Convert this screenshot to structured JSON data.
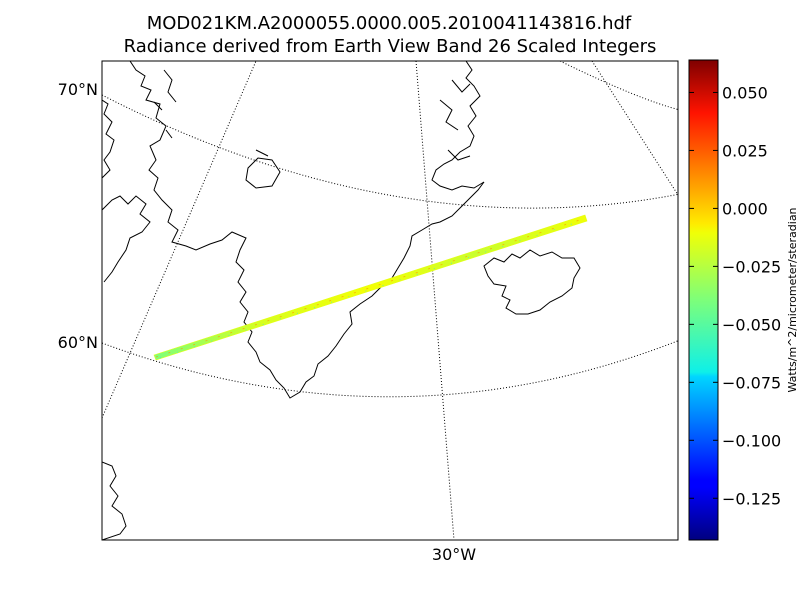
{
  "title": {
    "line1": "MOD021KM.A2000055.0000.005.2010041143816.hdf",
    "line2": "Radiance derived from Earth View Band 26 Scaled Integers"
  },
  "map": {
    "projection": "lambert-conformal",
    "lat_labels": [
      {
        "text": "70°N",
        "lat": 70
      },
      {
        "text": "60°N",
        "lat": 60
      }
    ],
    "lon_labels": [
      {
        "text": "30°W",
        "lon": -30
      }
    ],
    "graticule": "dotted",
    "coastline_color": "#000000",
    "land_fill": "none",
    "regions": [
      "greenland-coast",
      "iceland-coast",
      "baffin-coast",
      "labrador-coast"
    ]
  },
  "colorbar": {
    "colormap": "jet",
    "ticks": [
      "0.050",
      "0.025",
      "0.000",
      "−0.025",
      "−0.050",
      "−0.075",
      "−0.100",
      "−0.125"
    ],
    "tick_values": [
      0.05,
      0.025,
      0.0,
      -0.025,
      -0.05,
      -0.075,
      -0.1,
      -0.125
    ],
    "vmin": -0.143,
    "vmax": 0.064,
    "unit_label": "Watts/m^2/micrometer/steradian"
  },
  "chart_data": {
    "type": "heatmap",
    "title": "MOD021KM.A2000055.0000.005.2010041143816.hdf Radiance derived from Earth View Band 26 Scaled Integers",
    "description_of_swath": "narrow satellite swath crossing southern Greenland toward Iceland",
    "value_range": [
      -0.143,
      0.064
    ],
    "dominant_value": -0.01,
    "colors": {
      "high": "#800000",
      "mid": "#ffff00",
      "low": "#000080"
    }
  }
}
